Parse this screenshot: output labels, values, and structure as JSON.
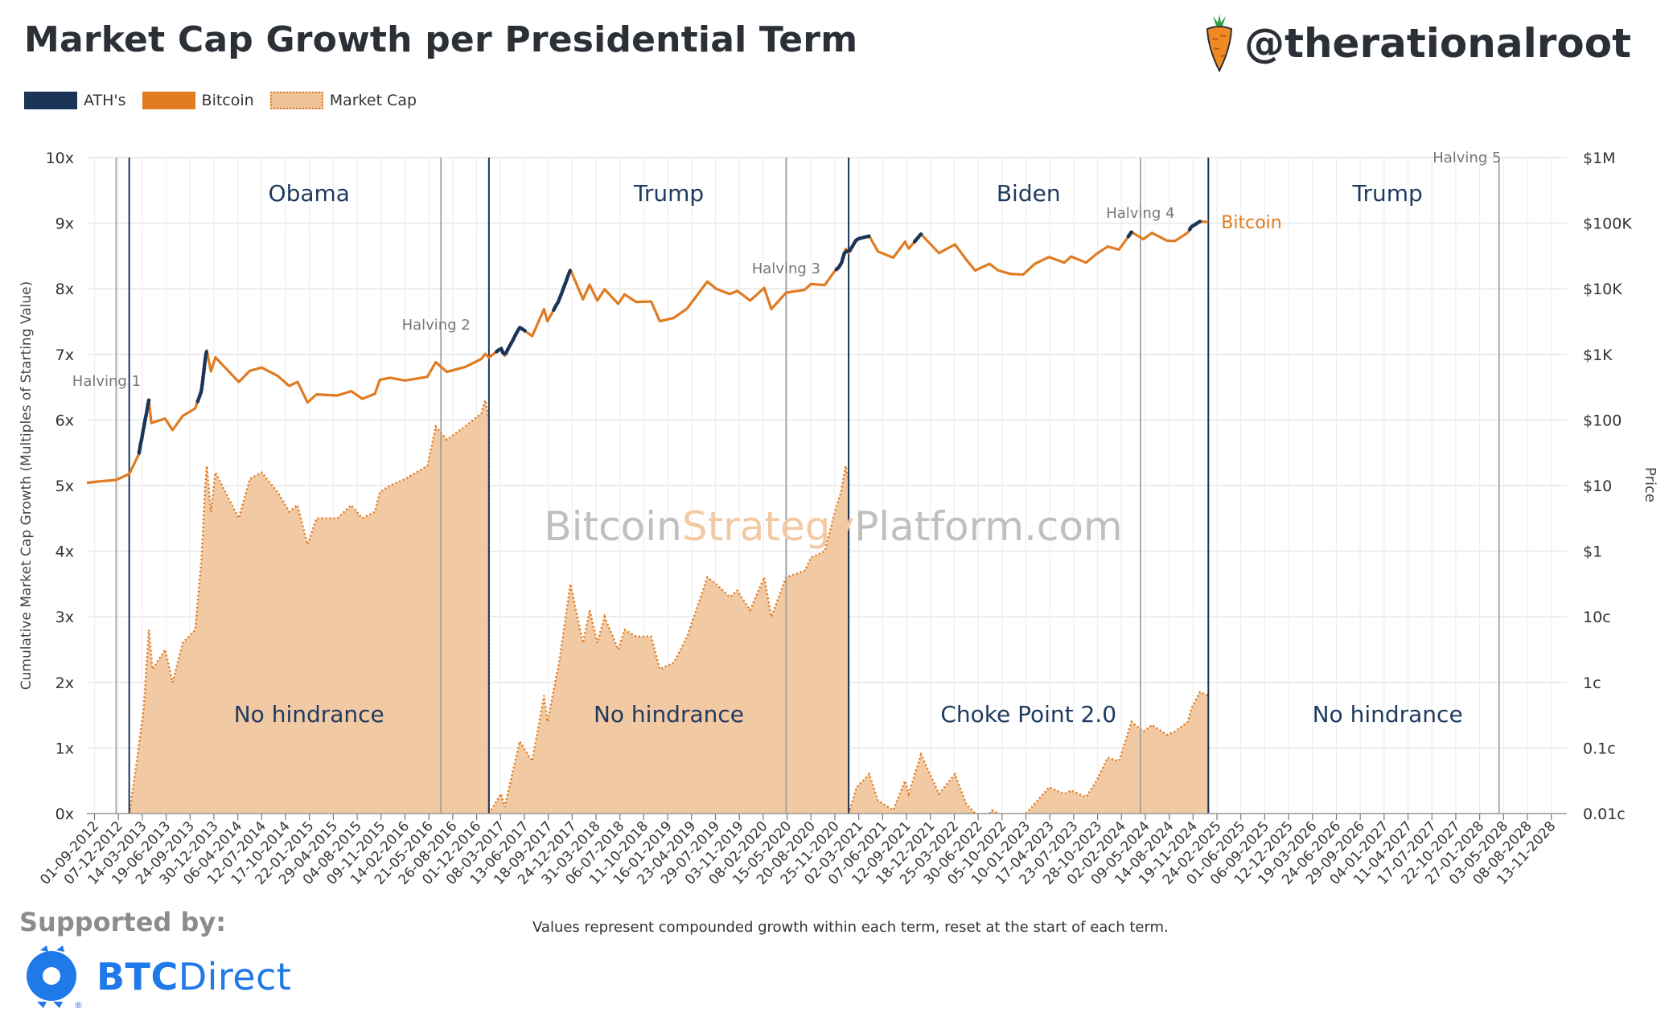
{
  "header": {
    "title": "Market Cap Growth per Presidential Term",
    "handle": "@therationalroot"
  },
  "legend": {
    "ath": "ATH's",
    "bitcoin": "Bitcoin",
    "market_cap": "Market Cap"
  },
  "footer": {
    "supported_by": "Supported by:",
    "sponsor_bold": "BTC",
    "sponsor_rest": "Direct",
    "note": "Values represent compounded growth within each term, reset at the start of each term."
  },
  "colors": {
    "bitcoin": "#e07b22",
    "ath": "#1b3558",
    "market_cap_fill": "#efc398",
    "grid": "#e6e6e6",
    "term_line": "#1b3558",
    "halving_line": "#9a9a9a",
    "watermark": "#bfbfbf",
    "sponsor": "#1f79e8"
  },
  "chart_data": {
    "type": "area",
    "watermark": {
      "part1": "Bitcoin",
      "part2": "Strategy",
      "part3": "Platform.com"
    },
    "x_range": [
      "2012-08-01",
      "2029-01-15"
    ],
    "left_axis": {
      "label": "Cumulative Market Cap Growth (Multiples of Starting Value)",
      "range": [
        0,
        10
      ],
      "ticks": [
        "0x",
        "1x",
        "2x",
        "3x",
        "4x",
        "5x",
        "6x",
        "7x",
        "8x",
        "9x",
        "10x"
      ]
    },
    "right_axis": {
      "label": "Price",
      "scale": "log",
      "ticks": [
        "0.01c",
        "0.1c",
        "1c",
        "10c",
        "$1",
        "$10",
        "$100",
        "$1K",
        "$10K",
        "$100K",
        "$1M"
      ]
    },
    "x_tick_labels": [
      "01-09-2012",
      "07-12-2012",
      "14-03-2013",
      "19-06-2013",
      "24-09-2013",
      "30-12-2013",
      "06-04-2014",
      "12-07-2014",
      "17-10-2014",
      "22-01-2015",
      "29-04-2015",
      "04-08-2015",
      "09-11-2015",
      "14-02-2016",
      "21-05-2016",
      "26-08-2016",
      "01-12-2016",
      "08-03-2017",
      "13-06-2017",
      "18-09-2017",
      "24-12-2017",
      "31-03-2018",
      "06-07-2018",
      "11-10-2018",
      "16-01-2019",
      "23-04-2019",
      "29-07-2019",
      "03-11-2019",
      "08-02-2020",
      "15-05-2020",
      "20-08-2020",
      "25-11-2020",
      "02-03-2021",
      "07-06-2021",
      "12-09-2021",
      "18-12-2021",
      "25-03-2022",
      "30-06-2022",
      "05-10-2022",
      "10-01-2023",
      "17-04-2023",
      "23-07-2023",
      "28-10-2023",
      "02-02-2024",
      "09-05-2024",
      "14-08-2024",
      "19-11-2024",
      "24-02-2025",
      "01-06-2025",
      "06-09-2025",
      "12-12-2025",
      "19-03-2026",
      "24-06-2026",
      "29-09-2026",
      "04-01-2027",
      "11-04-2027",
      "17-07-2027",
      "22-10-2027",
      "27-01-2028",
      "03-05-2028",
      "08-08-2028",
      "13-11-2028"
    ],
    "terms": [
      {
        "name": "Obama",
        "start": "2013-01-20",
        "end": "2017-01-20",
        "status": "No hindrance"
      },
      {
        "name": "Trump",
        "start": "2017-01-20",
        "end": "2021-01-20",
        "status": "No hindrance"
      },
      {
        "name": "Biden",
        "start": "2021-01-20",
        "end": "2025-01-20",
        "status": "Choke Point 2.0"
      },
      {
        "name": "Trump",
        "start": "2025-01-20",
        "end": "2029-01-20",
        "status": "No hindrance"
      }
    ],
    "halvings": [
      {
        "label": "Halving 1",
        "date": "2012-11-28"
      },
      {
        "label": "Halving 2",
        "date": "2016-07-09"
      },
      {
        "label": "Halving 3",
        "date": "2020-05-11"
      },
      {
        "label": "Halving 4",
        "date": "2024-04-19"
      },
      {
        "label": "Halving 5",
        "date": "2028-04-15"
      }
    ],
    "series": [
      {
        "name": "Bitcoin",
        "axis": "right",
        "label": "Bitcoin",
        "points": [
          [
            "2012-08-01",
            11
          ],
          [
            "2012-09-15",
            11.5
          ],
          [
            "2012-11-28",
            12.2
          ],
          [
            "2013-01-20",
            15
          ],
          [
            "2013-02-28",
            30
          ],
          [
            "2013-04-10",
            200
          ],
          [
            "2013-04-20",
            90
          ],
          [
            "2013-06-15",
            105
          ],
          [
            "2013-07-15",
            70
          ],
          [
            "2013-08-25",
            115
          ],
          [
            "2013-10-15",
            150
          ],
          [
            "2013-11-10",
            280
          ],
          [
            "2013-11-25",
            800
          ],
          [
            "2013-12-01",
            1150
          ],
          [
            "2013-12-18",
            550
          ],
          [
            "2014-01-05",
            900
          ],
          [
            "2014-02-15",
            620
          ],
          [
            "2014-04-10",
            380
          ],
          [
            "2014-05-25",
            560
          ],
          [
            "2014-07-12",
            630
          ],
          [
            "2014-09-15",
            470
          ],
          [
            "2014-11-01",
            330
          ],
          [
            "2014-12-05",
            380
          ],
          [
            "2015-01-14",
            185
          ],
          [
            "2015-02-20",
            245
          ],
          [
            "2015-05-15",
            236
          ],
          [
            "2015-07-10",
            275
          ],
          [
            "2015-08-25",
            210
          ],
          [
            "2015-10-15",
            250
          ],
          [
            "2015-11-04",
            410
          ],
          [
            "2015-12-15",
            440
          ],
          [
            "2016-02-15",
            400
          ],
          [
            "2016-05-15",
            455
          ],
          [
            "2016-06-18",
            760
          ],
          [
            "2016-08-02",
            540
          ],
          [
            "2016-10-15",
            640
          ],
          [
            "2016-12-20",
            850
          ],
          [
            "2017-01-05",
            1020
          ],
          [
            "2017-01-20",
            895
          ],
          [
            "2017-03-10",
            1240
          ],
          [
            "2017-03-25",
            950
          ],
          [
            "2017-05-25",
            2600
          ],
          [
            "2017-07-15",
            1900
          ],
          [
            "2017-09-01",
            4900
          ],
          [
            "2017-09-15",
            3200
          ],
          [
            "2017-11-01",
            6700
          ],
          [
            "2017-12-17",
            19500
          ],
          [
            "2018-02-06",
            6900
          ],
          [
            "2018-03-05",
            11500
          ],
          [
            "2018-04-05",
            6600
          ],
          [
            "2018-05-05",
            9800
          ],
          [
            "2018-06-29",
            5900
          ],
          [
            "2018-07-25",
            8200
          ],
          [
            "2018-09-10",
            6300
          ],
          [
            "2018-11-10",
            6400
          ],
          [
            "2018-12-15",
            3200
          ],
          [
            "2019-02-10",
            3600
          ],
          [
            "2019-04-05",
            5000
          ],
          [
            "2019-06-26",
            12900
          ],
          [
            "2019-08-01",
            10000
          ],
          [
            "2019-09-25",
            8300
          ],
          [
            "2019-10-26",
            9300
          ],
          [
            "2019-12-17",
            6600
          ],
          [
            "2020-02-12",
            10300
          ],
          [
            "2020-03-12",
            4900
          ],
          [
            "2020-05-11",
            8700
          ],
          [
            "2020-07-25",
            9600
          ],
          [
            "2020-08-20",
            11800
          ],
          [
            "2020-10-15",
            11400
          ],
          [
            "2020-11-25",
            18700
          ],
          [
            "2020-12-20",
            23000
          ],
          [
            "2021-01-08",
            40500
          ],
          [
            "2021-01-20",
            35000
          ],
          [
            "2021-02-21",
            57000
          ],
          [
            "2021-04-14",
            63500
          ],
          [
            "2021-05-19",
            37000
          ],
          [
            "2021-07-20",
            29800
          ],
          [
            "2021-09-06",
            52000
          ],
          [
            "2021-09-21",
            41000
          ],
          [
            "2021-11-10",
            68000
          ],
          [
            "2022-01-22",
            35000
          ],
          [
            "2022-03-28",
            47500
          ],
          [
            "2022-05-12",
            28000
          ],
          [
            "2022-06-18",
            19000
          ],
          [
            "2022-08-15",
            24000
          ],
          [
            "2022-09-20",
            19000
          ],
          [
            "2022-11-10",
            16800
          ],
          [
            "2022-12-30",
            16500
          ],
          [
            "2023-02-15",
            24000
          ],
          [
            "2023-04-14",
            30500
          ],
          [
            "2023-06-15",
            25000
          ],
          [
            "2023-07-13",
            31000
          ],
          [
            "2023-09-11",
            25000
          ],
          [
            "2023-10-24",
            34000
          ],
          [
            "2023-12-08",
            44000
          ],
          [
            "2024-01-23",
            39500
          ],
          [
            "2024-03-14",
            73000
          ],
          [
            "2024-05-01",
            57000
          ],
          [
            "2024-06-05",
            71000
          ],
          [
            "2024-08-05",
            54000
          ],
          [
            "2024-09-06",
            53500
          ],
          [
            "2024-10-29",
            72000
          ],
          [
            "2024-11-12",
            88000
          ],
          [
            "2024-12-17",
            106000
          ],
          [
            "2025-01-20",
            104000
          ]
        ]
      },
      {
        "name": "Market Cap",
        "axis": "left",
        "segments": [
          [
            [
              "2013-01-20",
              0
            ],
            [
              "2013-02-20",
              0.8
            ],
            [
              "2013-03-20",
              1.6
            ],
            [
              "2013-04-10",
              2.8
            ],
            [
              "2013-04-25",
              2.2
            ],
            [
              "2013-06-15",
              2.5
            ],
            [
              "2013-07-15",
              2.0
            ],
            [
              "2013-08-25",
              2.6
            ],
            [
              "2013-10-15",
              2.8
            ],
            [
              "2013-11-10",
              3.9
            ],
            [
              "2013-11-25",
              5.0
            ],
            [
              "2013-12-01",
              5.3
            ],
            [
              "2013-12-18",
              4.6
            ],
            [
              "2014-01-05",
              5.2
            ],
            [
              "2014-02-15",
              4.9
            ],
            [
              "2014-04-10",
              4.5
            ],
            [
              "2014-05-25",
              5.1
            ],
            [
              "2014-07-12",
              5.2
            ],
            [
              "2014-09-15",
              4.9
            ],
            [
              "2014-11-01",
              4.6
            ],
            [
              "2014-12-05",
              4.7
            ],
            [
              "2015-01-14",
              4.1
            ],
            [
              "2015-02-20",
              4.5
            ],
            [
              "2015-05-15",
              4.5
            ],
            [
              "2015-07-10",
              4.7
            ],
            [
              "2015-08-25",
              4.5
            ],
            [
              "2015-10-15",
              4.6
            ],
            [
              "2015-11-04",
              4.9
            ],
            [
              "2015-12-15",
              5.0
            ],
            [
              "2016-02-15",
              5.1
            ],
            [
              "2016-05-15",
              5.3
            ],
            [
              "2016-06-18",
              5.9
            ],
            [
              "2016-08-02",
              5.7
            ],
            [
              "2016-10-15",
              5.9
            ],
            [
              "2016-12-20",
              6.1
            ],
            [
              "2017-01-05",
              6.3
            ],
            [
              "2017-01-20",
              6.0
            ],
            [
              "2017-01-20",
              0
            ]
          ],
          [
            [
              "2017-01-20",
              0
            ],
            [
              "2017-03-10",
              0.3
            ],
            [
              "2017-03-25",
              0.1
            ],
            [
              "2017-05-25",
              1.1
            ],
            [
              "2017-07-15",
              0.8
            ],
            [
              "2017-09-01",
              1.8
            ],
            [
              "2017-09-15",
              1.4
            ],
            [
              "2017-11-01",
              2.3
            ],
            [
              "2017-12-17",
              3.5
            ],
            [
              "2018-02-06",
              2.6
            ],
            [
              "2018-03-05",
              3.1
            ],
            [
              "2018-04-05",
              2.6
            ],
            [
              "2018-05-05",
              3.0
            ],
            [
              "2018-06-29",
              2.5
            ],
            [
              "2018-07-25",
              2.8
            ],
            [
              "2018-09-10",
              2.7
            ],
            [
              "2018-11-10",
              2.7
            ],
            [
              "2018-12-15",
              2.2
            ],
            [
              "2019-02-10",
              2.3
            ],
            [
              "2019-04-05",
              2.7
            ],
            [
              "2019-06-26",
              3.6
            ],
            [
              "2019-08-01",
              3.5
            ],
            [
              "2019-09-25",
              3.3
            ],
            [
              "2019-10-26",
              3.4
            ],
            [
              "2019-12-17",
              3.1
            ],
            [
              "2020-02-12",
              3.6
            ],
            [
              "2020-03-12",
              3.0
            ],
            [
              "2020-05-11",
              3.6
            ],
            [
              "2020-07-25",
              3.7
            ],
            [
              "2020-08-20",
              3.9
            ],
            [
              "2020-10-15",
              4.0
            ],
            [
              "2020-11-25",
              4.6
            ],
            [
              "2020-12-20",
              4.9
            ],
            [
              "2021-01-08",
              5.3
            ],
            [
              "2021-01-20",
              5.1
            ],
            [
              "2021-01-20",
              0
            ]
          ],
          [
            [
              "2021-01-20",
              0
            ],
            [
              "2021-02-21",
              0.4
            ],
            [
              "2021-04-14",
              0.6
            ],
            [
              "2021-05-19",
              0.2
            ],
            [
              "2021-07-20",
              0.05
            ],
            [
              "2021-09-06",
              0.5
            ],
            [
              "2021-09-21",
              0.3
            ],
            [
              "2021-11-10",
              0.9
            ],
            [
              "2022-01-22",
              0.3
            ],
            [
              "2022-03-28",
              0.6
            ],
            [
              "2022-05-12",
              0.15
            ],
            [
              "2022-06-18",
              0
            ]
          ],
          [
            [
              "2022-08-15",
              0
            ],
            [
              "2022-08-25",
              0.05
            ],
            [
              "2022-09-20",
              0
            ]
          ],
          [
            [
              "2023-01-10",
              0
            ],
            [
              "2023-02-15",
              0.15
            ],
            [
              "2023-04-14",
              0.4
            ],
            [
              "2023-06-15",
              0.3
            ],
            [
              "2023-07-13",
              0.35
            ],
            [
              "2023-09-11",
              0.25
            ],
            [
              "2023-10-24",
              0.5
            ],
            [
              "2023-12-08",
              0.85
            ],
            [
              "2024-01-23",
              0.8
            ],
            [
              "2024-03-14",
              1.4
            ],
            [
              "2024-05-01",
              1.25
            ],
            [
              "2024-06-05",
              1.35
            ],
            [
              "2024-08-05",
              1.2
            ],
            [
              "2024-09-06",
              1.25
            ],
            [
              "2024-10-29",
              1.4
            ],
            [
              "2024-11-12",
              1.6
            ],
            [
              "2024-12-17",
              1.85
            ],
            [
              "2025-01-20",
              1.8
            ],
            [
              "2025-01-20",
              0
            ]
          ]
        ]
      }
    ],
    "ath_ranges": [
      [
        "2013-03-01",
        "2013-04-10"
      ],
      [
        "2013-10-25",
        "2013-12-01"
      ],
      [
        "2017-02-20",
        "2017-06-15"
      ],
      [
        "2017-10-10",
        "2017-12-17"
      ],
      [
        "2020-12-01",
        "2021-04-14"
      ],
      [
        "2021-10-15",
        "2021-11-10"
      ],
      [
        "2024-03-01",
        "2024-03-14"
      ],
      [
        "2024-11-05",
        "2024-12-17"
      ]
    ]
  }
}
